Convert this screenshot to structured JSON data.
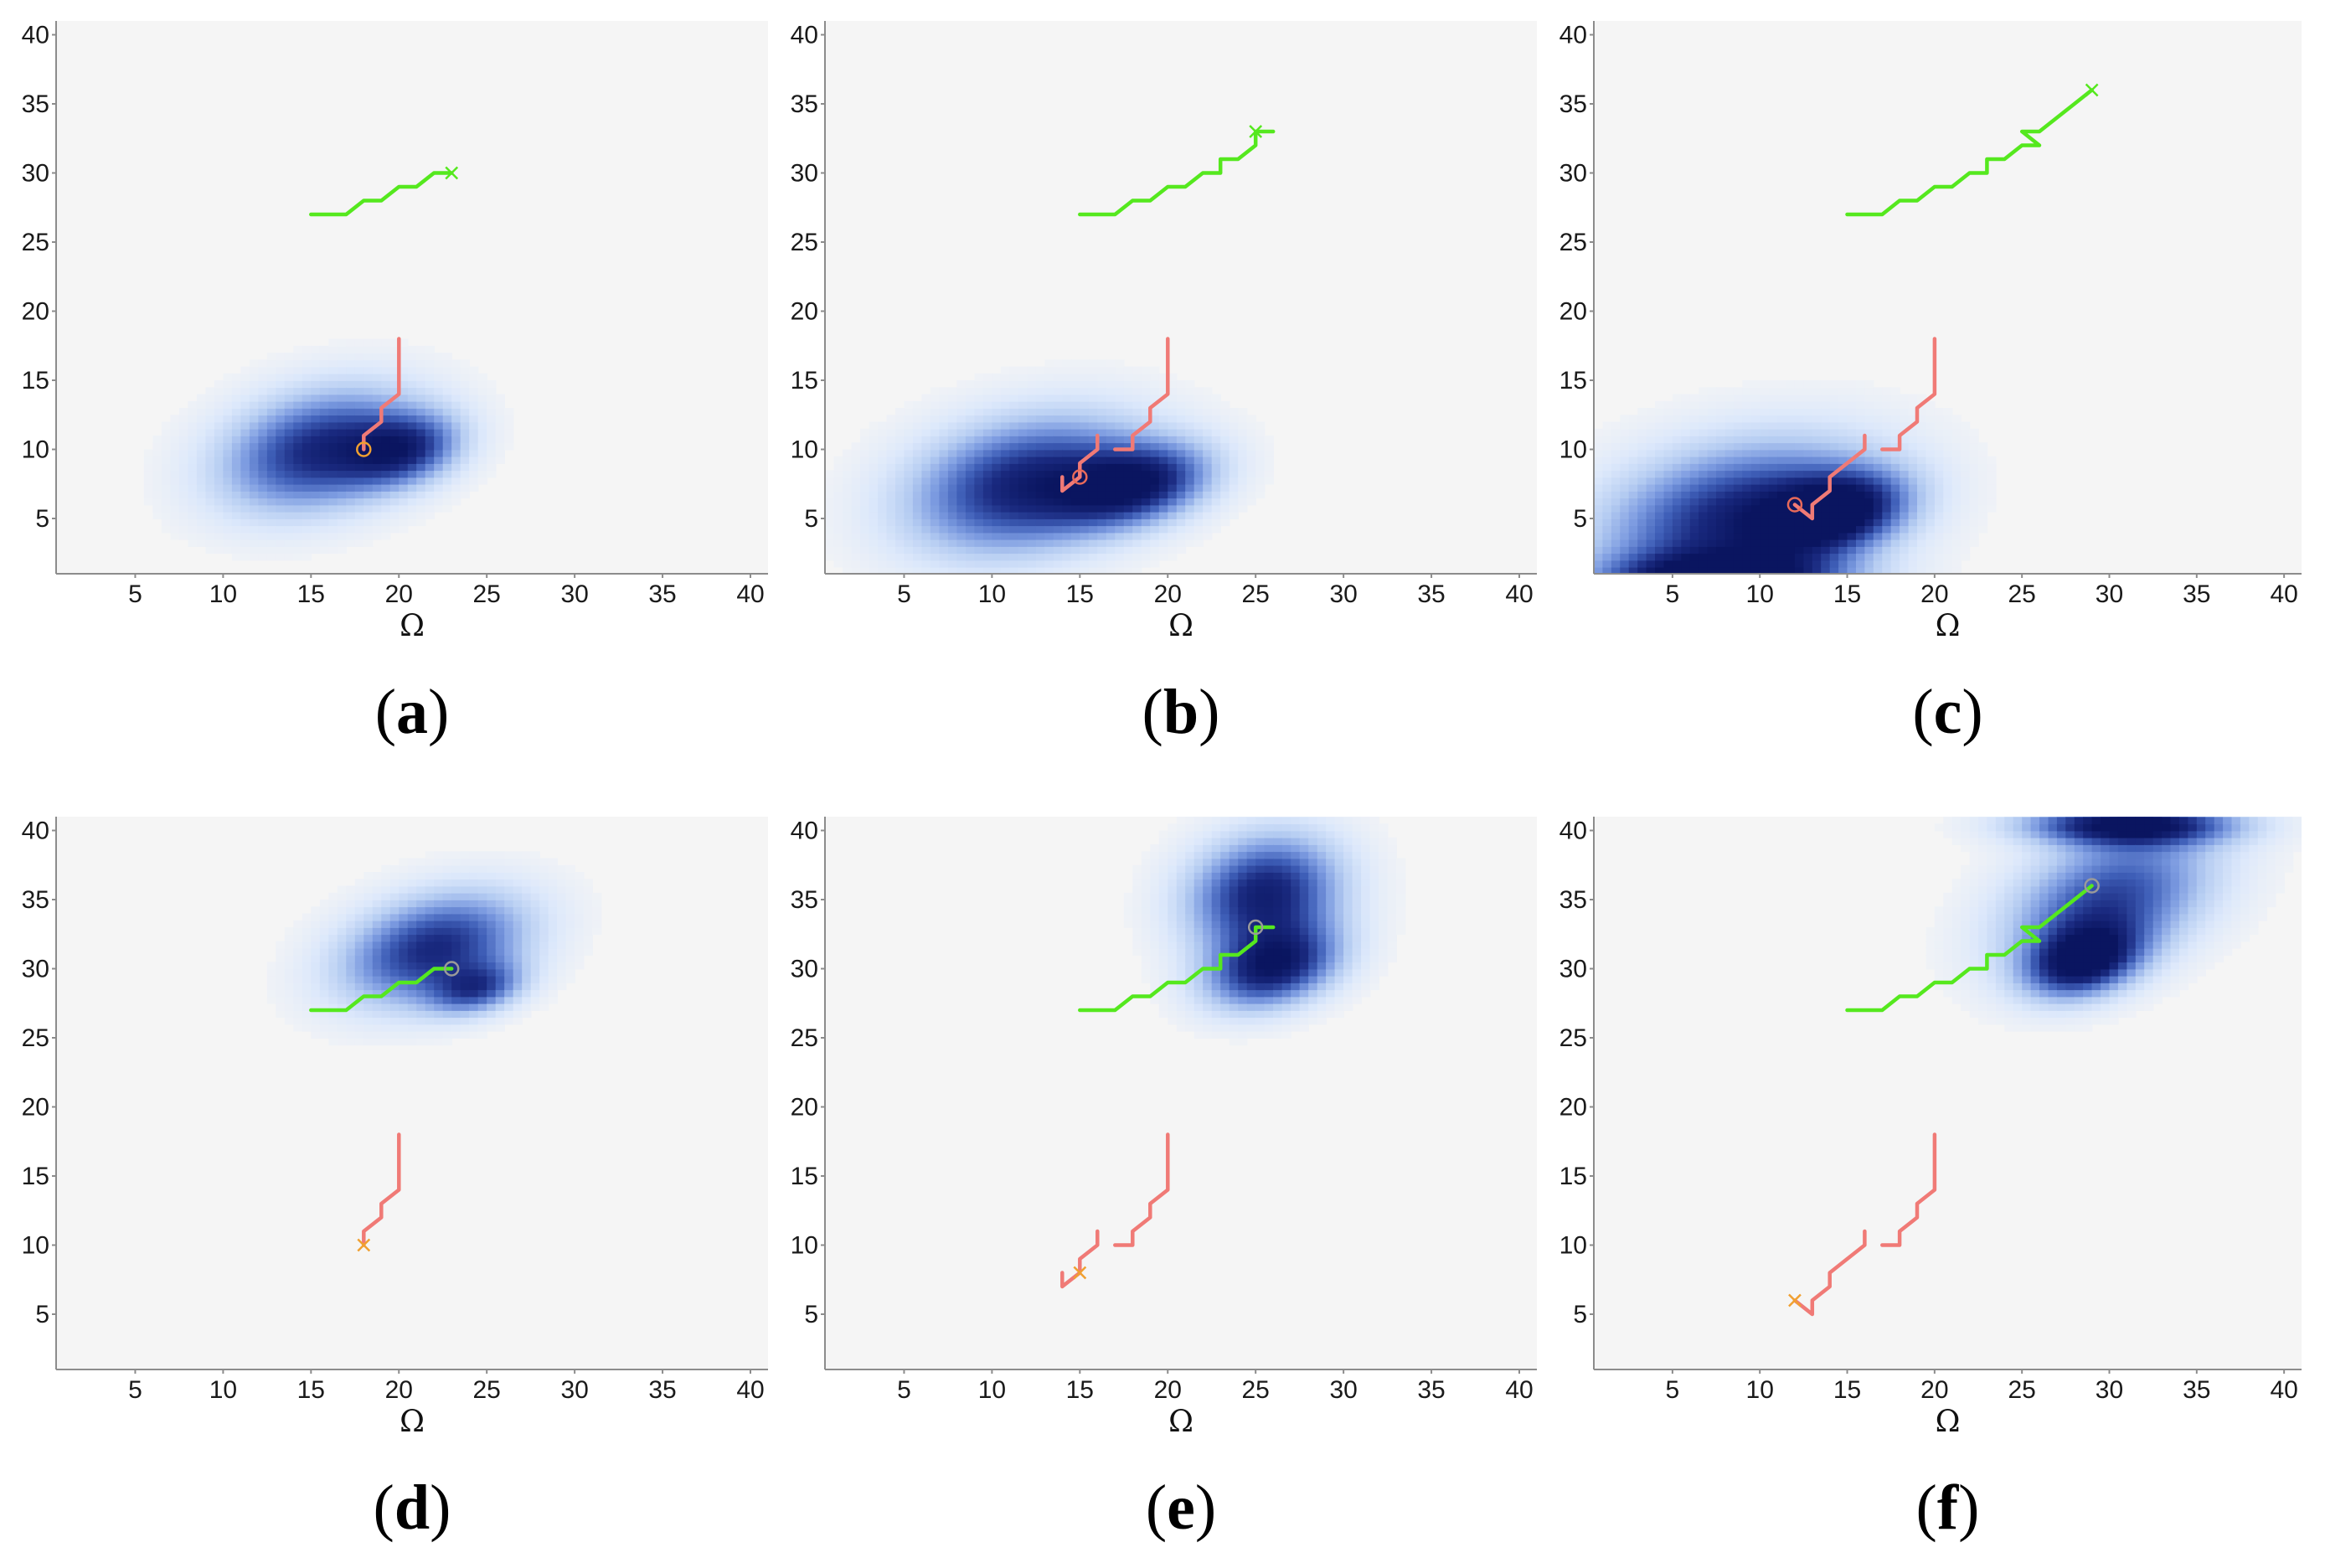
{
  "figure": {
    "panel_count": 6,
    "colors": {
      "background": "#f5f5f5",
      "axis": "#8c8c8c",
      "path_green": "#55e81e",
      "path_red": "#f07a76",
      "marker_orange": "#f0a030",
      "marker_red": "#e86a5a",
      "density_scale": [
        "#f5f5f5",
        "#dce8fb",
        "#b6cdf2",
        "#7b9ae0",
        "#3f5fb8",
        "#1a2a80",
        "#0a1560"
      ]
    }
  },
  "chart_data": [
    {
      "type": "line",
      "caption": {
        "open": "(",
        "letter": "a",
        "close": ")"
      },
      "xlabel": "Ω",
      "ylabel": "",
      "xlim": [
        0.5,
        41
      ],
      "ylim": [
        1,
        41
      ],
      "xticks": [
        5,
        10,
        15,
        20,
        25,
        30,
        35,
        40
      ],
      "yticks": [
        5,
        10,
        15,
        20,
        25,
        30,
        35,
        40
      ],
      "density": [
        {
          "x": 15.5,
          "y": 10,
          "rx": 9,
          "ry": 6.2,
          "rot": 25,
          "w": 0.85
        },
        {
          "x": 20.5,
          "y": 10,
          "rx": 5,
          "ry": 3.6,
          "rot": 25,
          "w": 0.6
        }
      ],
      "series": [
        {
          "name": "green path",
          "color": "#55e81e",
          "points": [
            [
              15,
              27
            ],
            [
              17,
              27
            ],
            [
              18,
              28
            ],
            [
              19,
              28
            ],
            [
              20,
              29
            ],
            [
              21,
              29
            ],
            [
              22,
              30
            ],
            [
              23,
              30
            ]
          ]
        },
        {
          "name": "red path",
          "color": "#f07a76",
          "points": [
            [
              20,
              18
            ],
            [
              20,
              14
            ],
            [
              19,
              13
            ],
            [
              19,
              12
            ],
            [
              18,
              11
            ],
            [
              18,
              10
            ]
          ]
        }
      ],
      "markers": [
        {
          "type": "x",
          "x": 23,
          "y": 30,
          "color": "#55e81e"
        },
        {
          "type": "o",
          "x": 18,
          "y": 10,
          "color": "#f0a030"
        }
      ]
    },
    {
      "type": "line",
      "caption": {
        "open": "(",
        "letter": "b",
        "close": ")"
      },
      "xlabel": "Ω",
      "ylabel": "",
      "xlim": [
        0.5,
        41
      ],
      "ylim": [
        1,
        41
      ],
      "xticks": [
        5,
        10,
        15,
        20,
        25,
        30,
        35,
        40
      ],
      "yticks": [
        5,
        10,
        15,
        20,
        25,
        30,
        35,
        40
      ],
      "density": [
        {
          "x": 12,
          "y": 7.5,
          "rx": 10.5,
          "ry": 7,
          "rot": 20,
          "w": 0.9
        },
        {
          "x": 18.5,
          "y": 7.5,
          "rx": 6.5,
          "ry": 4,
          "rot": 20,
          "w": 0.75
        }
      ],
      "series": [
        {
          "name": "green path",
          "color": "#55e81e",
          "points": [
            [
              15,
              27
            ],
            [
              17,
              27
            ],
            [
              18,
              28
            ],
            [
              19,
              28
            ],
            [
              20,
              29
            ],
            [
              21,
              29
            ],
            [
              22,
              30
            ],
            [
              23,
              30
            ],
            [
              23,
              31
            ],
            [
              24,
              31
            ],
            [
              25,
              32
            ],
            [
              25,
              33
            ],
            [
              26,
              33
            ]
          ]
        },
        {
          "name": "red path",
          "color": "#f07a76",
          "points": [
            [
              20,
              18
            ],
            [
              20,
              14
            ],
            [
              19,
              13
            ],
            [
              19,
              12
            ],
            [
              18,
              11
            ],
            [
              18,
              10
            ],
            [
              17,
              10
            ]
          ]
        },
        {
          "name": "red segment",
          "color": "#f07a76",
          "points": [
            [
              16,
              11
            ],
            [
              16,
              10
            ],
            [
              15,
              9
            ],
            [
              15,
              8
            ],
            [
              14,
              7
            ],
            [
              14,
              8
            ]
          ]
        }
      ],
      "markers": [
        {
          "type": "x",
          "x": 25,
          "y": 33,
          "color": "#55e81e"
        },
        {
          "type": "o",
          "x": 15,
          "y": 8,
          "color": "#e86a5a"
        }
      ]
    },
    {
      "type": "line",
      "caption": {
        "open": "(",
        "letter": "c",
        "close": ")"
      },
      "xlabel": "Ω",
      "ylabel": "",
      "xlim": [
        0.5,
        41
      ],
      "ylim": [
        1,
        41
      ],
      "xticks": [
        5,
        10,
        15,
        20,
        25,
        30,
        35,
        40
      ],
      "yticks": [
        5,
        10,
        15,
        20,
        25,
        30,
        35,
        40
      ],
      "density": [
        {
          "x": 9,
          "y": 5,
          "rx": 12.5,
          "ry": 8,
          "rot": 18,
          "w": 0.9
        },
        {
          "x": 14.5,
          "y": 5.5,
          "rx": 6,
          "ry": 3.8,
          "rot": 20,
          "w": 0.75
        },
        {
          "x": 8,
          "y": 0.5,
          "rx": 10,
          "ry": 2.8,
          "rot": 0,
          "w": 0.85
        }
      ],
      "series": [
        {
          "name": "green path",
          "color": "#55e81e",
          "points": [
            [
              15,
              27
            ],
            [
              17,
              27
            ],
            [
              18,
              28
            ],
            [
              19,
              28
            ],
            [
              20,
              29
            ],
            [
              21,
              29
            ],
            [
              22,
              30
            ],
            [
              23,
              30
            ],
            [
              23,
              31
            ],
            [
              24,
              31
            ],
            [
              25,
              32
            ],
            [
              26,
              32
            ],
            [
              25,
              33
            ],
            [
              26,
              33
            ],
            [
              28,
              35
            ],
            [
              29,
              36
            ]
          ]
        },
        {
          "name": "red path",
          "color": "#f07a76",
          "points": [
            [
              20,
              18
            ],
            [
              20,
              14
            ],
            [
              19,
              13
            ],
            [
              19,
              12
            ],
            [
              18,
              11
            ],
            [
              18,
              10
            ],
            [
              17,
              10
            ]
          ]
        },
        {
          "name": "red segment",
          "color": "#f07a76",
          "points": [
            [
              16,
              11
            ],
            [
              16,
              10
            ],
            [
              15,
              9
            ],
            [
              14,
              8
            ],
            [
              14,
              7
            ],
            [
              13,
              6
            ],
            [
              13,
              5
            ],
            [
              12,
              6
            ]
          ]
        }
      ],
      "markers": [
        {
          "type": "x",
          "x": 29,
          "y": 36,
          "color": "#55e81e"
        },
        {
          "type": "o",
          "x": 12,
          "y": 6,
          "color": "#e86a5a"
        }
      ]
    },
    {
      "type": "line",
      "caption": {
        "open": "(",
        "letter": "d",
        "close": ")"
      },
      "xlabel": "Ω",
      "ylabel": "",
      "xlim": [
        0.5,
        41
      ],
      "ylim": [
        1,
        41
      ],
      "xticks": [
        5,
        10,
        15,
        20,
        25,
        30,
        35,
        40
      ],
      "yticks": [
        5,
        10,
        15,
        20,
        25,
        30,
        35,
        40
      ],
      "density": [
        {
          "x": 22,
          "y": 31.5,
          "rx": 8.5,
          "ry": 5.5,
          "rot": 25,
          "w": 0.85
        },
        {
          "x": 24.5,
          "y": 28.5,
          "rx": 4,
          "ry": 2.5,
          "rot": 20,
          "w": 0.55
        }
      ],
      "series": [
        {
          "name": "green path",
          "color": "#55e81e",
          "points": [
            [
              15,
              27
            ],
            [
              17,
              27
            ],
            [
              18,
              28
            ],
            [
              19,
              28
            ],
            [
              20,
              29
            ],
            [
              21,
              29
            ],
            [
              22,
              30
            ],
            [
              23,
              30
            ]
          ]
        },
        {
          "name": "red path",
          "color": "#f07a76",
          "points": [
            [
              20,
              18
            ],
            [
              20,
              14
            ],
            [
              19,
              13
            ],
            [
              19,
              12
            ],
            [
              18,
              11
            ],
            [
              18,
              10
            ]
          ]
        }
      ],
      "markers": [
        {
          "type": "o",
          "x": 23,
          "y": 30,
          "color": "#9a9a9a"
        },
        {
          "type": "x",
          "x": 18,
          "y": 10,
          "color": "#f0a030"
        }
      ]
    },
    {
      "type": "line",
      "caption": {
        "open": "(",
        "letter": "e",
        "close": ")"
      },
      "xlabel": "Ω",
      "ylabel": "",
      "xlim": [
        0.5,
        41
      ],
      "ylim": [
        1,
        41
      ],
      "xticks": [
        5,
        10,
        15,
        20,
        25,
        30,
        35,
        40
      ],
      "yticks": [
        5,
        10,
        15,
        20,
        25,
        30,
        35,
        40
      ],
      "density": [
        {
          "x": 25.5,
          "y": 35.5,
          "rx": 7,
          "ry": 6,
          "rot": 40,
          "w": 0.9
        },
        {
          "x": 26,
          "y": 30,
          "rx": 6,
          "ry": 4,
          "rot": 25,
          "w": 0.85
        }
      ],
      "series": [
        {
          "name": "green path",
          "color": "#55e81e",
          "points": [
            [
              15,
              27
            ],
            [
              17,
              27
            ],
            [
              18,
              28
            ],
            [
              19,
              28
            ],
            [
              20,
              29
            ],
            [
              21,
              29
            ],
            [
              22,
              30
            ],
            [
              23,
              30
            ],
            [
              23,
              31
            ],
            [
              24,
              31
            ],
            [
              25,
              32
            ],
            [
              25,
              33
            ],
            [
              26,
              33
            ]
          ]
        },
        {
          "name": "red path",
          "color": "#f07a76",
          "points": [
            [
              20,
              18
            ],
            [
              20,
              14
            ],
            [
              19,
              13
            ],
            [
              19,
              12
            ],
            [
              18,
              11
            ],
            [
              18,
              10
            ],
            [
              17,
              10
            ]
          ]
        },
        {
          "name": "red segment",
          "color": "#f07a76",
          "points": [
            [
              16,
              11
            ],
            [
              16,
              10
            ],
            [
              15,
              9
            ],
            [
              15,
              8
            ],
            [
              14,
              7
            ],
            [
              14,
              8
            ]
          ]
        }
      ],
      "markers": [
        {
          "type": "o",
          "x": 25,
          "y": 33,
          "color": "#9a9a9a"
        },
        {
          "type": "x",
          "x": 15,
          "y": 8,
          "color": "#f0a030"
        }
      ]
    },
    {
      "type": "line",
      "caption": {
        "open": "(",
        "letter": "f",
        "close": ")"
      },
      "xlabel": "Ω",
      "ylabel": "",
      "xlim": [
        0.5,
        41
      ],
      "ylim": [
        1,
        41
      ],
      "xticks": [
        5,
        10,
        15,
        20,
        25,
        30,
        35,
        40
      ],
      "yticks": [
        5,
        10,
        15,
        20,
        25,
        30,
        35,
        40
      ],
      "density": [
        {
          "x": 30,
          "y": 35,
          "rx": 10,
          "ry": 6.5,
          "rot": 35,
          "w": 0.75
        },
        {
          "x": 28.5,
          "y": 30.5,
          "rx": 5,
          "ry": 3.5,
          "rot": 25,
          "w": 0.85
        },
        {
          "x": 31,
          "y": 40.5,
          "rx": 9,
          "ry": 2.2,
          "rot": 0,
          "w": 0.9
        }
      ],
      "series": [
        {
          "name": "green path",
          "color": "#55e81e",
          "points": [
            [
              15,
              27
            ],
            [
              17,
              27
            ],
            [
              18,
              28
            ],
            [
              19,
              28
            ],
            [
              20,
              29
            ],
            [
              21,
              29
            ],
            [
              22,
              30
            ],
            [
              23,
              30
            ],
            [
              23,
              31
            ],
            [
              24,
              31
            ],
            [
              25,
              32
            ],
            [
              26,
              32
            ],
            [
              25,
              33
            ],
            [
              26,
              33
            ],
            [
              28,
              35
            ],
            [
              29,
              36
            ]
          ]
        },
        {
          "name": "red path",
          "color": "#f07a76",
          "points": [
            [
              20,
              18
            ],
            [
              20,
              14
            ],
            [
              19,
              13
            ],
            [
              19,
              12
            ],
            [
              18,
              11
            ],
            [
              18,
              10
            ],
            [
              17,
              10
            ]
          ]
        },
        {
          "name": "red segment",
          "color": "#f07a76",
          "points": [
            [
              16,
              11
            ],
            [
              16,
              10
            ],
            [
              15,
              9
            ],
            [
              14,
              8
            ],
            [
              14,
              7
            ],
            [
              13,
              6
            ],
            [
              13,
              5
            ],
            [
              12,
              6
            ]
          ]
        }
      ],
      "markers": [
        {
          "type": "o",
          "x": 29,
          "y": 36,
          "color": "#9a9a9a"
        },
        {
          "type": "x",
          "x": 12,
          "y": 6,
          "color": "#f0a030"
        }
      ]
    }
  ]
}
